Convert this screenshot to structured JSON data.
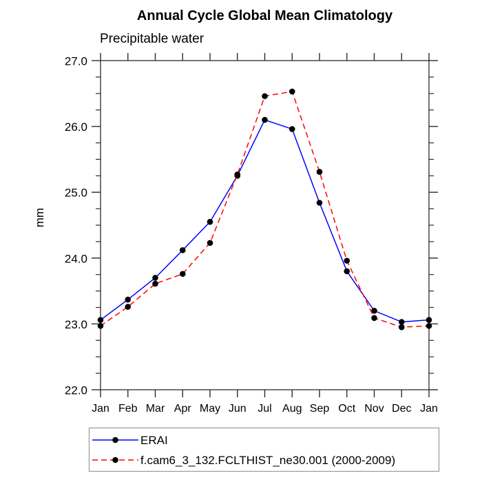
{
  "chart_data": {
    "type": "line",
    "title": "Annual Cycle Global Mean Climatology",
    "subtitle": "Precipitable water",
    "ylabel": "mm",
    "x_categories": [
      "Jan",
      "Feb",
      "Mar",
      "Apr",
      "May",
      "Jun",
      "Jul",
      "Aug",
      "Sep",
      "Oct",
      "Nov",
      "Dec",
      "Jan"
    ],
    "ylim": [
      22.0,
      27.0
    ],
    "y_ticks": [
      {
        "value": 22.0,
        "label": "22.0"
      },
      {
        "value": 23.0,
        "label": "23.0"
      },
      {
        "value": 24.0,
        "label": "24.0"
      },
      {
        "value": 25.0,
        "label": "25.0"
      },
      {
        "value": 26.0,
        "label": "26.0"
      },
      {
        "value": 27.0,
        "label": "27.0"
      }
    ],
    "y_minor_tick_step": 0.25,
    "grid": false,
    "legend_position": "bottom-left",
    "series": [
      {
        "name": "ERAI",
        "line_style": "solid",
        "color": "#0000ff",
        "marker": "circle",
        "marker_color": "#000000",
        "values": [
          23.06,
          23.37,
          23.7,
          24.12,
          24.55,
          25.25,
          26.1,
          25.96,
          24.84,
          23.8,
          23.2,
          23.03,
          23.06
        ]
      },
      {
        "name": "f.cam6_3_132.FCLTHIST_ne30.001 (2000-2009)",
        "line_style": "dashed",
        "color": "#ff0000",
        "marker": "circle",
        "marker_color": "#000000",
        "values": [
          22.97,
          23.26,
          23.61,
          23.76,
          24.23,
          25.27,
          26.46,
          26.53,
          25.31,
          23.96,
          23.09,
          22.95,
          22.97
        ]
      }
    ],
    "colors": {
      "axis": "#2b2b2b",
      "text": "#000000",
      "legend_border": "#999999",
      "background": "#ffffff"
    }
  }
}
